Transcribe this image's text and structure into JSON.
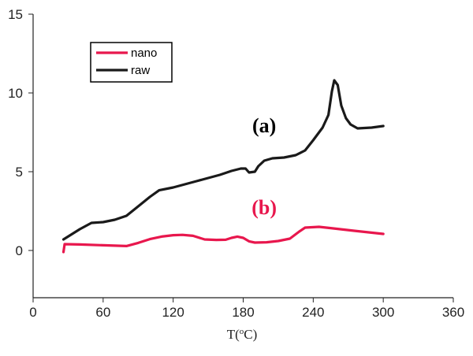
{
  "chart_data": {
    "type": "line",
    "xlabel": "T(",
    "xlabel_sup": "o",
    "xlabel_unit": "C)",
    "xlim": [
      0,
      360
    ],
    "ylim": [
      -3,
      15
    ],
    "xticks": [
      "0",
      "60",
      "120",
      "180",
      "240",
      "300",
      "360"
    ],
    "yticks": [
      "0",
      "5",
      "10",
      "15"
    ],
    "legend": {
      "placement": "top-left"
    },
    "annotations": [
      {
        "text": "(a)",
        "x": 198,
        "y": 7.5,
        "color": "#000000"
      },
      {
        "text": "(b)",
        "x": 198,
        "y": 2.3,
        "color": "#e8174d"
      }
    ],
    "series": [
      {
        "name": "nano",
        "color": "#e8174d",
        "points": [
          [
            26,
            -0.1
          ],
          [
            27,
            0.4
          ],
          [
            40,
            0.38
          ],
          [
            60,
            0.33
          ],
          [
            80,
            0.28
          ],
          [
            90,
            0.48
          ],
          [
            100,
            0.72
          ],
          [
            110,
            0.88
          ],
          [
            120,
            0.97
          ],
          [
            128,
            0.99
          ],
          [
            137,
            0.93
          ],
          [
            147,
            0.7
          ],
          [
            157,
            0.67
          ],
          [
            165,
            0.68
          ],
          [
            170,
            0.8
          ],
          [
            175,
            0.88
          ],
          [
            180,
            0.8
          ],
          [
            185,
            0.58
          ],
          [
            190,
            0.5
          ],
          [
            200,
            0.52
          ],
          [
            210,
            0.6
          ],
          [
            220,
            0.75
          ],
          [
            228,
            1.2
          ],
          [
            233,
            1.45
          ],
          [
            245,
            1.5
          ],
          [
            255,
            1.42
          ],
          [
            275,
            1.25
          ],
          [
            300,
            1.05
          ]
        ]
      },
      {
        "name": "raw",
        "color": "#1a1a1a",
        "points": [
          [
            26,
            0.7
          ],
          [
            40,
            1.35
          ],
          [
            50,
            1.75
          ],
          [
            60,
            1.8
          ],
          [
            70,
            1.95
          ],
          [
            80,
            2.2
          ],
          [
            90,
            2.8
          ],
          [
            100,
            3.4
          ],
          [
            108,
            3.82
          ],
          [
            120,
            4.0
          ],
          [
            130,
            4.2
          ],
          [
            140,
            4.4
          ],
          [
            150,
            4.6
          ],
          [
            160,
            4.8
          ],
          [
            170,
            5.05
          ],
          [
            178,
            5.2
          ],
          [
            182,
            5.2
          ],
          [
            185,
            4.95
          ],
          [
            190,
            5.0
          ],
          [
            193,
            5.35
          ],
          [
            198,
            5.7
          ],
          [
            205,
            5.85
          ],
          [
            215,
            5.9
          ],
          [
            225,
            6.05
          ],
          [
            233,
            6.35
          ],
          [
            240,
            7.0
          ],
          [
            248,
            7.8
          ],
          [
            253,
            8.6
          ],
          [
            256,
            10.1
          ],
          [
            258,
            10.8
          ],
          [
            261,
            10.5
          ],
          [
            264,
            9.2
          ],
          [
            268,
            8.4
          ],
          [
            272,
            8.0
          ],
          [
            278,
            7.75
          ],
          [
            290,
            7.8
          ],
          [
            300,
            7.9
          ]
        ]
      }
    ]
  }
}
